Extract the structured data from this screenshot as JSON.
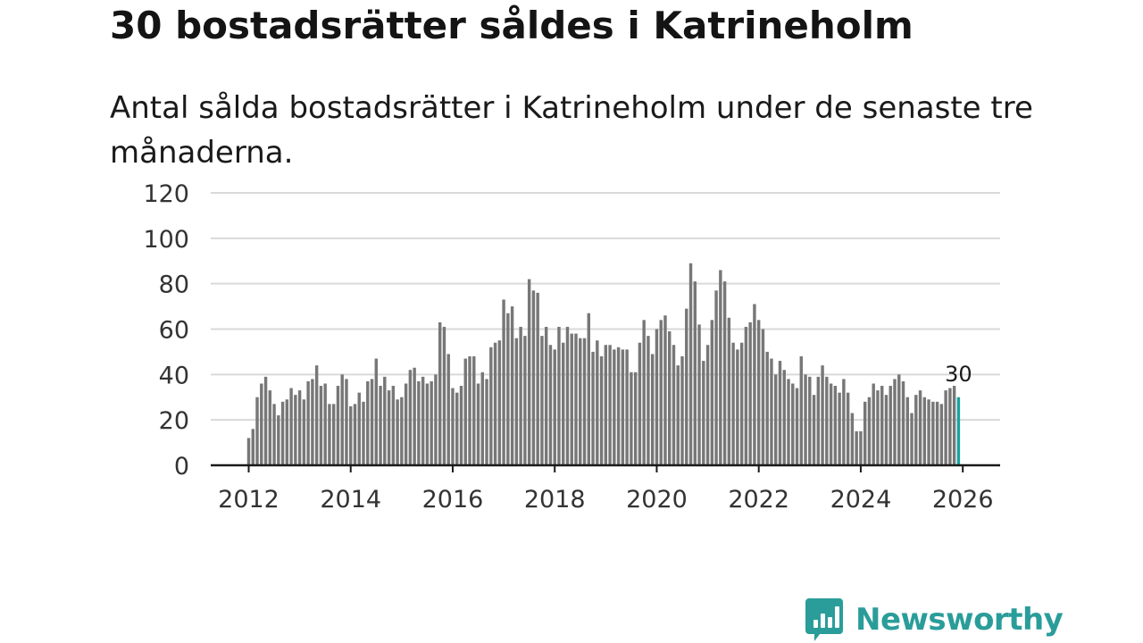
{
  "title": "30 bostadsrätter såldes i Katrineholm",
  "subtitle": "Antal sålda bostadsrätter i Katrineholm under de senaste tre månaderna.",
  "brand": {
    "name": "Newsworthy",
    "color": "#2a9d9a",
    "icon": "newsworthy-logo-icon"
  },
  "chart_data": {
    "type": "bar",
    "title": "Antal sålda bostadsrätter i Katrineholm under de senaste tre månaderna.",
    "xlabel": "",
    "ylabel": "",
    "ylim": [
      0,
      120
    ],
    "yticks": [
      0,
      20,
      40,
      60,
      80,
      100,
      120
    ],
    "xticks": [
      2012,
      2014,
      2016,
      2018,
      2020,
      2022,
      2024,
      2026
    ],
    "x_start": 2012.0,
    "x_step_years": 0.08333,
    "bar_color": "#777777",
    "highlight_color": "#1aa39f",
    "grid": true,
    "values": [
      12,
      16,
      30,
      36,
      39,
      33,
      27,
      22,
      28,
      29,
      34,
      31,
      33,
      29,
      37,
      38,
      44,
      35,
      36,
      27,
      27,
      35,
      40,
      38,
      26,
      27,
      32,
      28,
      37,
      38,
      47,
      35,
      39,
      33,
      35,
      29,
      30,
      36,
      42,
      43,
      37,
      39,
      36,
      37,
      40,
      63,
      61,
      49,
      34,
      32,
      35,
      47,
      48,
      48,
      36,
      41,
      38,
      52,
      54,
      55,
      73,
      67,
      70,
      56,
      61,
      57,
      82,
      77,
      76,
      57,
      61,
      53,
      51,
      61,
      54,
      61,
      58,
      58,
      56,
      56,
      67,
      50,
      55,
      48,
      53,
      53,
      51,
      52,
      51,
      51,
      41,
      41,
      54,
      64,
      57,
      49,
      60,
      64,
      66,
      59,
      53,
      44,
      48,
      69,
      89,
      81,
      62,
      46,
      53,
      64,
      77,
      86,
      81,
      65,
      54,
      51,
      54,
      61,
      63,
      71,
      64,
      60,
      50,
      47,
      40,
      46,
      42,
      38,
      36,
      34,
      48,
      40,
      39,
      31,
      39,
      44,
      39,
      36,
      35,
      32,
      38,
      32,
      23,
      15,
      15,
      28,
      30,
      36,
      33,
      35,
      31,
      35,
      38,
      40,
      37,
      30,
      23,
      31,
      33,
      30,
      29,
      28,
      28,
      27,
      33,
      34,
      35,
      30
    ],
    "highlight_last": true,
    "last_value_label": "30"
  }
}
